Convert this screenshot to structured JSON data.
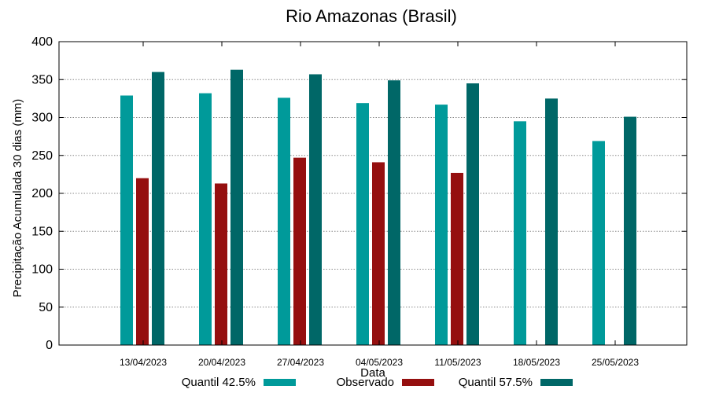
{
  "chart_data": {
    "type": "bar",
    "title": "Rio Amazonas (Brasil)",
    "xlabel": "Data",
    "ylabel": "Precipitação Acumulada 30 dias (mm)",
    "ylim": [
      0,
      400
    ],
    "yticks": [
      0,
      50,
      100,
      150,
      200,
      250,
      300,
      350,
      400
    ],
    "grid": true,
    "legend_position": "bottom",
    "categories": [
      "13/04/2023",
      "20/04/2023",
      "27/04/2023",
      "04/05/2023",
      "11/05/2023",
      "18/05/2023",
      "25/05/2023"
    ],
    "series": [
      {
        "name": "Quantil 42.5%",
        "color": "#009a9a",
        "values": [
          329,
          332,
          326,
          319,
          317,
          295,
          269
        ]
      },
      {
        "name": "Observado",
        "color": "#950f0f",
        "values": [
          220,
          213,
          247,
          241,
          227,
          null,
          null
        ]
      },
      {
        "name": "Quantil 57.5%",
        "color": "#006767",
        "values": [
          360,
          363,
          357,
          349,
          345,
          325,
          301
        ]
      }
    ]
  }
}
